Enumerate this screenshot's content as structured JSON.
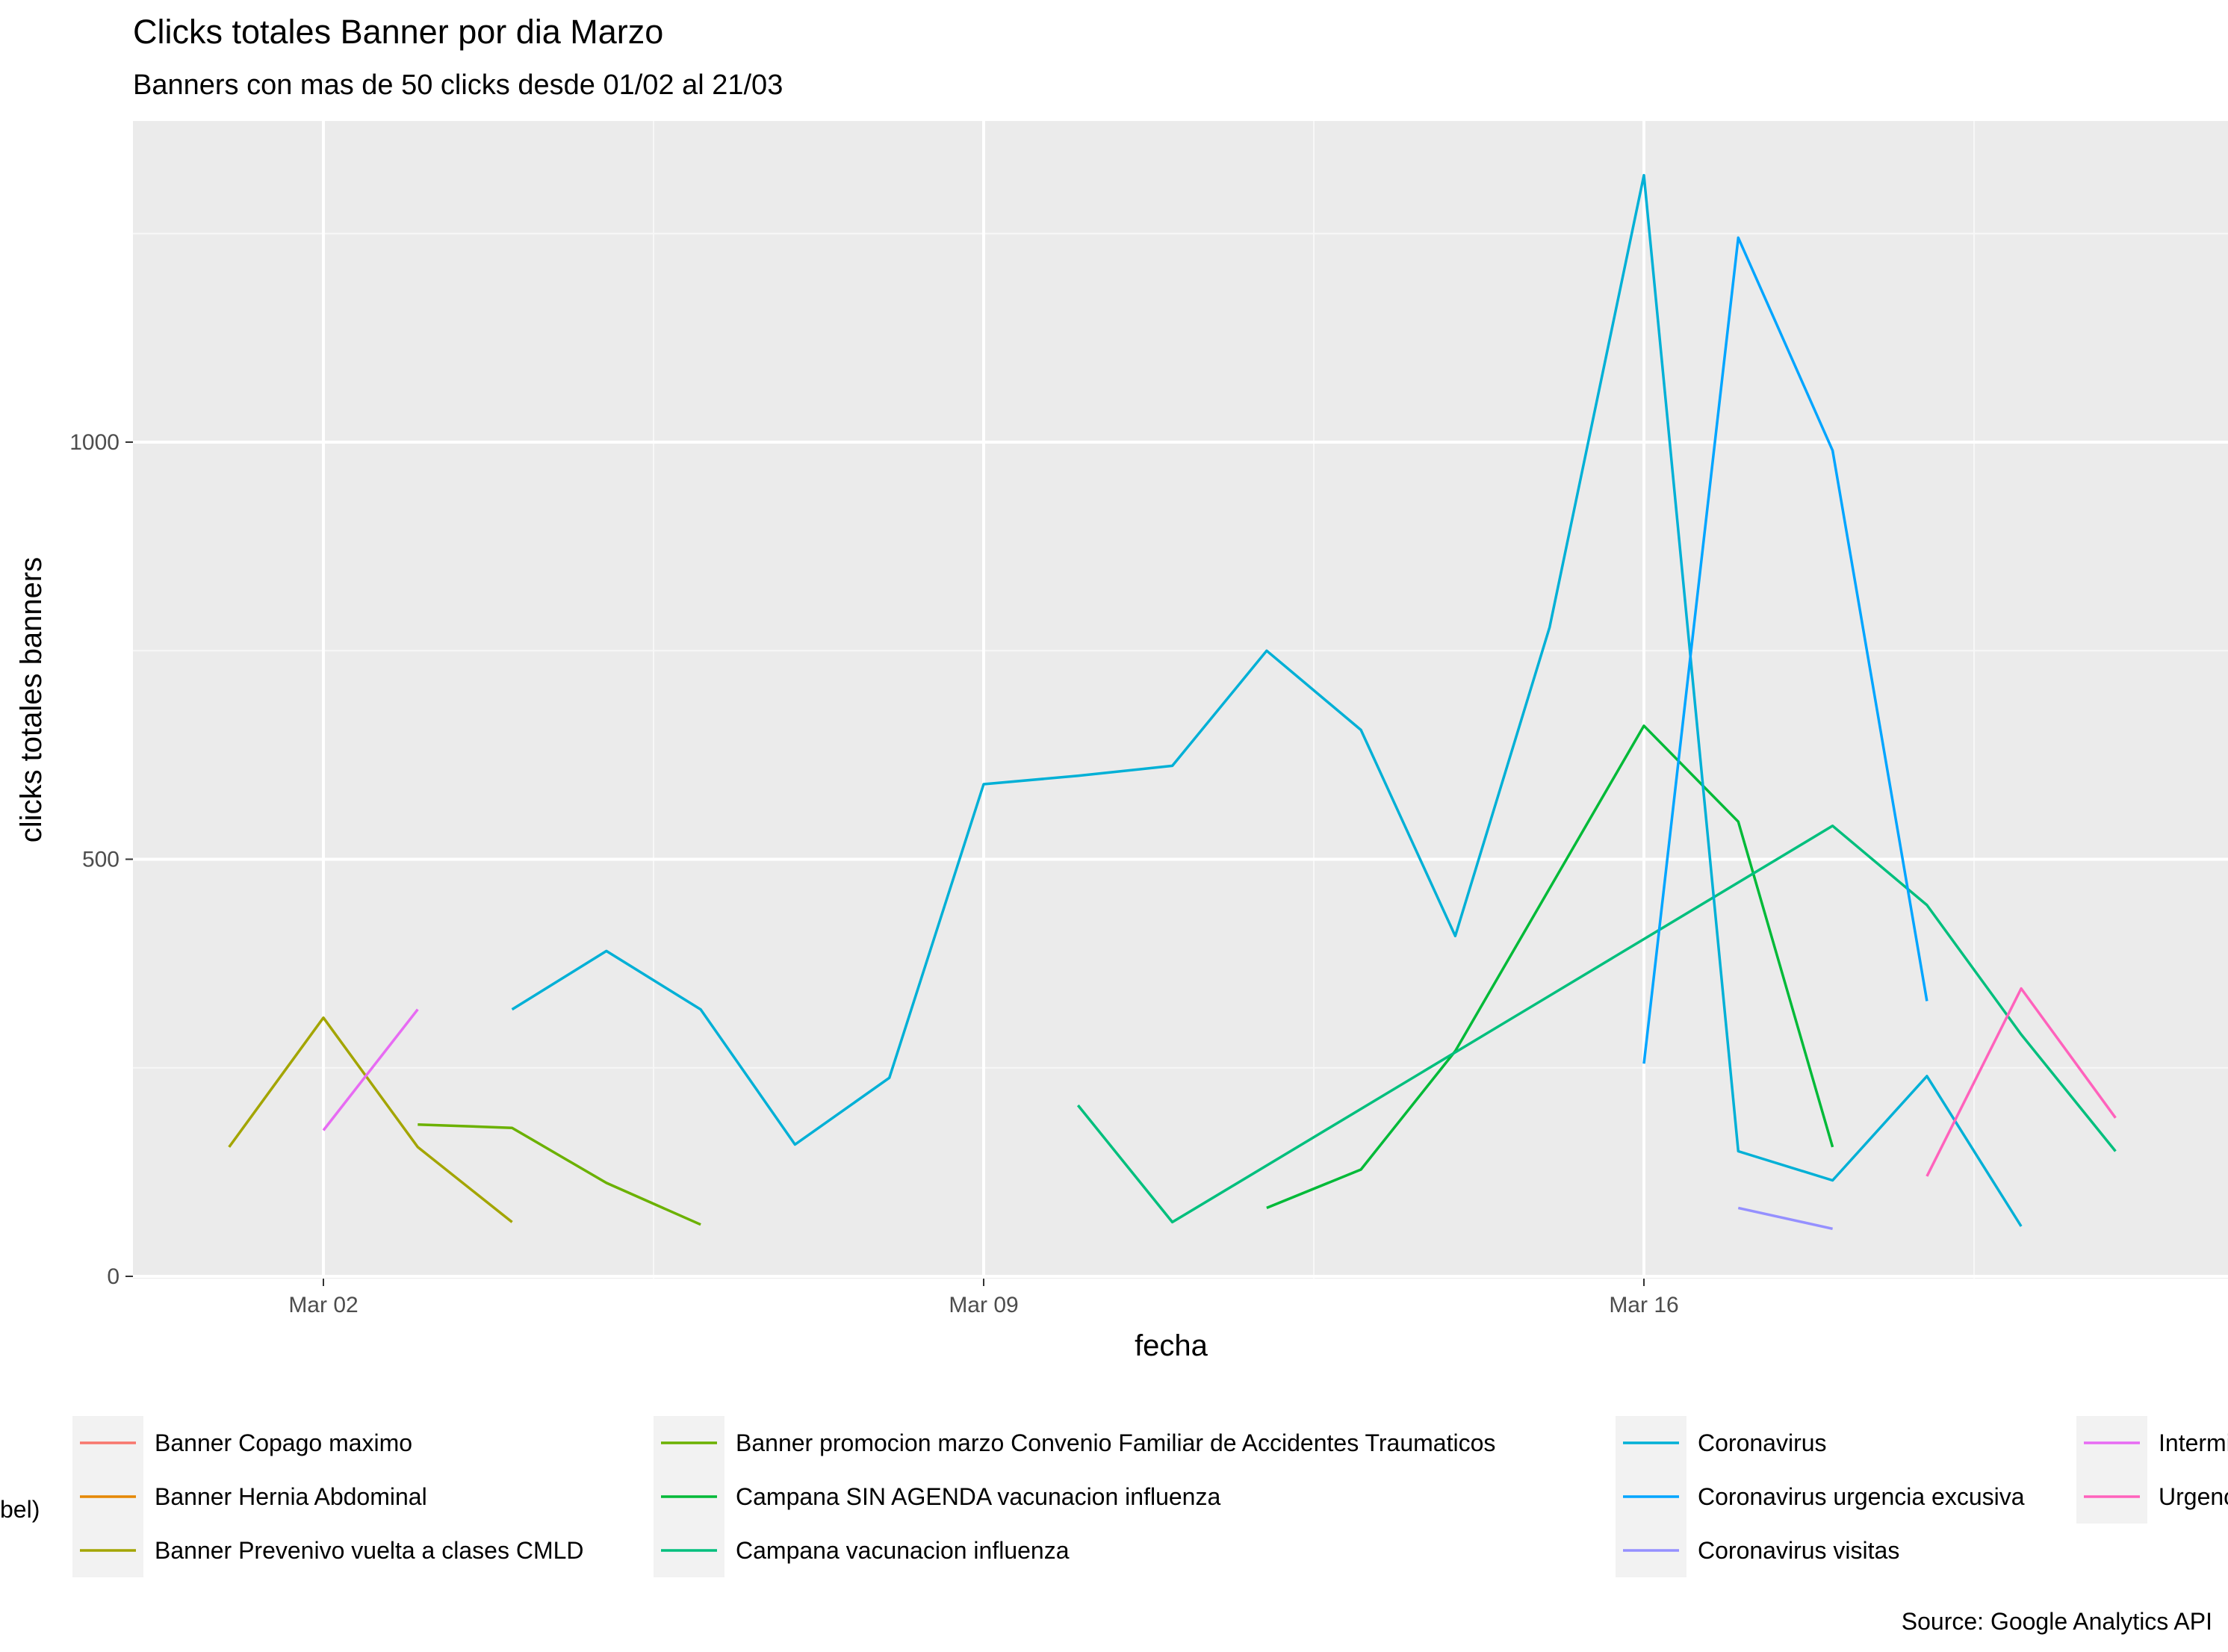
{
  "chart_data": {
    "type": "line",
    "title": "Clicks totales Banner por dia Marzo",
    "subtitle": "Banners con mas de 50 clicks desde 01/02 al 21/03",
    "xlabel": "fecha",
    "ylabel": "clicks totales banners",
    "caption": "Source: Google Analytics API",
    "legend_title_fragment": "bel)",
    "x_ticks": [
      "Mar 02",
      "Mar 09",
      "Mar 16"
    ],
    "y_ticks": [
      "0",
      "500",
      "1000"
    ],
    "xlim": [
      "2021-02-28",
      "2021-03-22"
    ],
    "ylim": [
      0,
      1320
    ],
    "grid": true,
    "legend_position": "bottom",
    "series": [
      {
        "name": "Banner Copago maximo",
        "color": "#F8766D",
        "points": []
      },
      {
        "name": "Banner Hernia Abdominal",
        "color": "#E58700",
        "points": []
      },
      {
        "name": "Banner Prevenivo vuelta a clases CMLD",
        "color": "#A3A500",
        "points": [
          [
            "2021-03-01",
            155
          ],
          [
            "2021-03-02",
            310
          ],
          [
            "2021-03-03",
            155
          ],
          [
            "2021-03-04",
            65
          ]
        ]
      },
      {
        "name": "Banner promocion marzo Convenio Familiar de Accidentes Traumaticos",
        "color": "#6BB100",
        "points": [
          [
            "2021-03-03",
            182
          ],
          [
            "2021-03-04",
            178
          ],
          [
            "2021-03-05",
            112
          ],
          [
            "2021-03-06",
            62
          ]
        ]
      },
      {
        "name": "Campana SIN AGENDA vacunacion influenza",
        "color": "#00BA38",
        "points": [
          [
            "2021-03-12",
            82
          ],
          [
            "2021-03-13",
            128
          ],
          [
            "2021-03-14",
            270
          ],
          [
            "2021-03-16",
            660
          ],
          [
            "2021-03-17",
            545
          ],
          [
            "2021-03-18",
            155
          ]
        ]
      },
      {
        "name": "Campana vacunacion influenza",
        "color": "#00BF7D",
        "points": [
          [
            "2021-03-10",
            205
          ],
          [
            "2021-03-11",
            65
          ],
          [
            "2021-03-18",
            540
          ],
          [
            "2021-03-19",
            445
          ],
          [
            "2021-03-20",
            290
          ],
          [
            "2021-03-21",
            150
          ]
        ]
      },
      {
        "name": "Coronavirus",
        "color": "#00B0D6",
        "points": [
          [
            "2021-03-04",
            320
          ],
          [
            "2021-03-05",
            390
          ],
          [
            "2021-03-06",
            320
          ],
          [
            "2021-03-07",
            158
          ],
          [
            "2021-03-08",
            238
          ],
          [
            "2021-03-09",
            590
          ],
          [
            "2021-03-10",
            600
          ],
          [
            "2021-03-11",
            612
          ],
          [
            "2021-03-12",
            750
          ],
          [
            "2021-03-13",
            655
          ],
          [
            "2021-03-14",
            408
          ],
          [
            "2021-03-15",
            778
          ],
          [
            "2021-03-16",
            1320
          ],
          [
            "2021-03-17",
            150
          ],
          [
            "2021-03-18",
            115
          ],
          [
            "2021-03-19",
            240
          ],
          [
            "2021-03-20",
            60
          ]
        ]
      },
      {
        "name": "Coronavirus urgencia excusiva",
        "color": "#00A5FF",
        "points": [
          [
            "2021-03-16",
            255
          ],
          [
            "2021-03-17",
            1245
          ],
          [
            "2021-03-18",
            990
          ],
          [
            "2021-03-19",
            330
          ]
        ]
      },
      {
        "name": "Coronavirus visitas",
        "color": "#9590FF",
        "points": [
          [
            "2021-03-17",
            82
          ],
          [
            "2021-03-18",
            57
          ]
        ]
      },
      {
        "name": "Intermi",
        "color": "#E76BF3",
        "points": [
          [
            "2021-03-02",
            175
          ],
          [
            "2021-03-03",
            320
          ]
        ]
      },
      {
        "name": "Urgenc",
        "color": "#FF62BC",
        "points": [
          [
            "2021-03-19",
            120
          ],
          [
            "2021-03-20",
            345
          ],
          [
            "2021-03-21",
            190
          ]
        ]
      }
    ]
  }
}
